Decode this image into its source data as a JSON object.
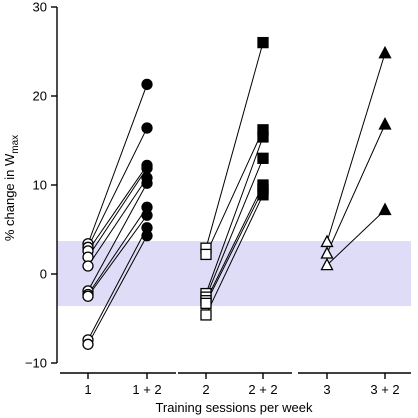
{
  "chart_data": {
    "type": "scatter",
    "title": "",
    "xlabel": "Training sessions per week",
    "ylabel": {
      "main": "% change in W",
      "sub": "max"
    },
    "ylim": [
      -10,
      30
    ],
    "yticks": [
      -10,
      0,
      10,
      20,
      30
    ],
    "categories": [
      "1",
      "1 + 2",
      "2",
      "2 + 2",
      "3",
      "3 + 2"
    ],
    "band": {
      "y0": -3.6,
      "y1": 3.7,
      "color": "#dedcf7"
    },
    "groups": [
      {
        "name": "1",
        "marker": "circle",
        "from": "1",
        "to": "1 + 2",
        "pairs": [
          [
            3.4,
            21.3
          ],
          [
            3.0,
            16.4
          ],
          [
            2.6,
            12.2
          ],
          [
            1.9,
            11.9
          ],
          [
            0.9,
            10.8
          ],
          [
            -1.9,
            10.2
          ],
          [
            -2.3,
            7.5
          ],
          [
            -2.5,
            6.6
          ],
          [
            -7.4,
            5.2
          ],
          [
            -7.9,
            4.3
          ]
        ]
      },
      {
        "name": "2",
        "marker": "square",
        "from": "2",
        "to": "2 + 2",
        "pairs": [
          [
            2.9,
            26.0
          ],
          [
            2.2,
            16.2
          ],
          [
            -2.2,
            15.4
          ],
          [
            -2.6,
            13.0
          ],
          [
            -3.0,
            10.0
          ],
          [
            -3.3,
            9.5
          ],
          [
            -4.6,
            8.9
          ]
        ]
      },
      {
        "name": "3",
        "marker": "triangle",
        "from": "3",
        "to": "3 + 2",
        "pairs": [
          [
            3.6,
            24.8
          ],
          [
            2.3,
            16.8
          ],
          [
            1.0,
            7.2
          ]
        ]
      }
    ],
    "colors": {
      "axis": "#000000",
      "marker_fill": "#000000",
      "open_fill": "#ffffff"
    },
    "grid": false,
    "legend": "none"
  }
}
